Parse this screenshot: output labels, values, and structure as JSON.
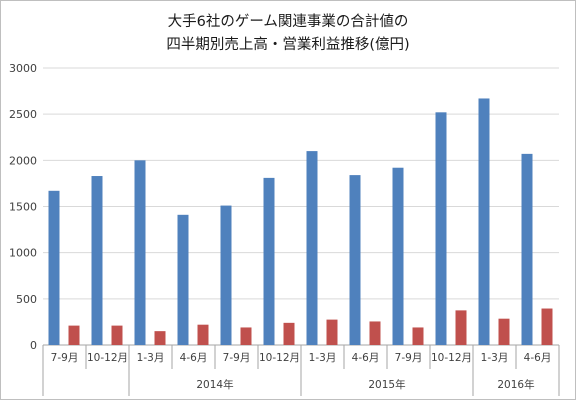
{
  "chart_data": {
    "type": "bar",
    "title": [
      "大手6社のゲーム関連事業の合計値の",
      "四半期別売上高・営業利益推移(億円)"
    ],
    "categories": [
      "7-9月",
      "10-12月",
      "1-3月",
      "4-6月",
      "7-9月",
      "10-12月",
      "1-3月",
      "4-6月",
      "7-9月",
      "10-12月",
      "1-3月",
      "4-6月"
    ],
    "year_groups": [
      {
        "label": "",
        "count": 2
      },
      {
        "label": "2014年",
        "count": 4
      },
      {
        "label": "2015年",
        "count": 4
      },
      {
        "label": "2016年",
        "count": 2
      }
    ],
    "series": [
      {
        "color": "#4f81bd",
        "values": [
          1670,
          1830,
          2000,
          1410,
          1510,
          1810,
          2100,
          1840,
          1920,
          2520,
          2670,
          2070
        ]
      },
      {
        "color": "#c0504d",
        "values": [
          210,
          210,
          150,
          220,
          190,
          240,
          275,
          255,
          190,
          375,
          285,
          395
        ]
      }
    ],
    "yticks": [
      0,
      500,
      1000,
      1500,
      2000,
      2500,
      3000
    ],
    "ylim": [
      0,
      3000
    ],
    "grid": true,
    "legend": "none"
  }
}
